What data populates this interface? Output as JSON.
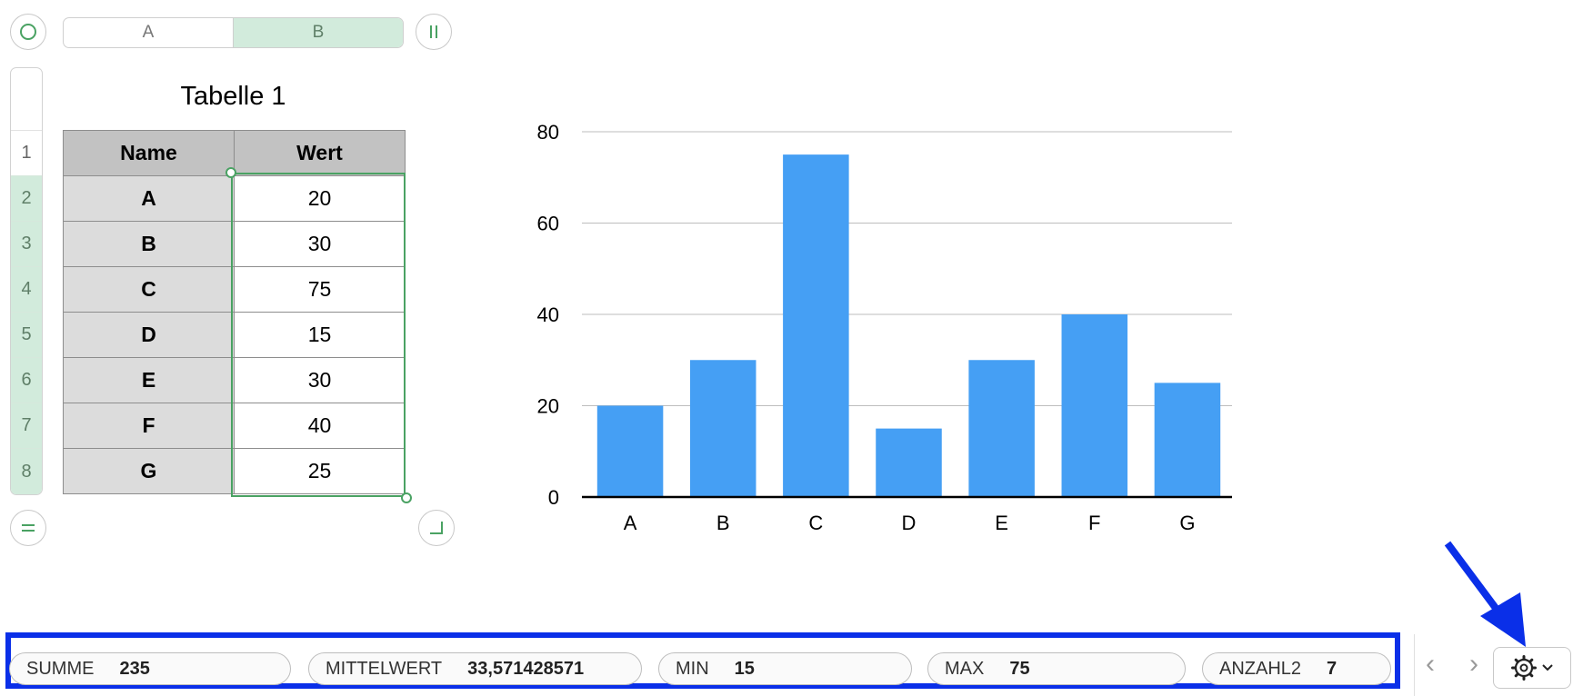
{
  "columns": [
    "A",
    "B"
  ],
  "selected_column": "B",
  "rows": [
    "1",
    "2",
    "3",
    "4",
    "5",
    "6",
    "7",
    "8"
  ],
  "table": {
    "title": "Tabelle 1",
    "headers": [
      "Name",
      "Wert"
    ],
    "rows": [
      {
        "name": "A",
        "value": "20"
      },
      {
        "name": "B",
        "value": "30"
      },
      {
        "name": "C",
        "value": "75"
      },
      {
        "name": "D",
        "value": "15"
      },
      {
        "name": "E",
        "value": "30"
      },
      {
        "name": "F",
        "value": "40"
      },
      {
        "name": "G",
        "value": "25"
      }
    ]
  },
  "chart_data": {
    "type": "bar",
    "categories": [
      "A",
      "B",
      "C",
      "D",
      "E",
      "F",
      "G"
    ],
    "values": [
      20,
      30,
      75,
      15,
      30,
      40,
      25
    ],
    "title": "",
    "xlabel": "",
    "ylabel": "",
    "ylim": [
      0,
      80
    ],
    "yticks": [
      0,
      20,
      40,
      60,
      80
    ],
    "grid": true,
    "bar_color": "#459ff4"
  },
  "status_bar": {
    "items": [
      {
        "label": "SUMME",
        "value": "235"
      },
      {
        "label": "MITTELWERT",
        "value": "33,571428571"
      },
      {
        "label": "MIN",
        "value": "15"
      },
      {
        "label": "MAX",
        "value": "75"
      },
      {
        "label": "ANZAHL2",
        "value": "7"
      }
    ]
  },
  "nav": {
    "prev": "‹",
    "next": "›"
  },
  "icons": {
    "corner_top_left": "circle-icon",
    "corner_top_right": "pause-icon",
    "corner_bottom_left": "equal-icon",
    "corner_bottom_right": "corner-resize-icon",
    "gear": "gear-icon",
    "chevron": "chevron-down-icon"
  },
  "colors": {
    "selection": "#4aa263",
    "highlight": "#0a2fe8",
    "header_selected": "#d2ebdc",
    "bar": "#459ff4"
  }
}
